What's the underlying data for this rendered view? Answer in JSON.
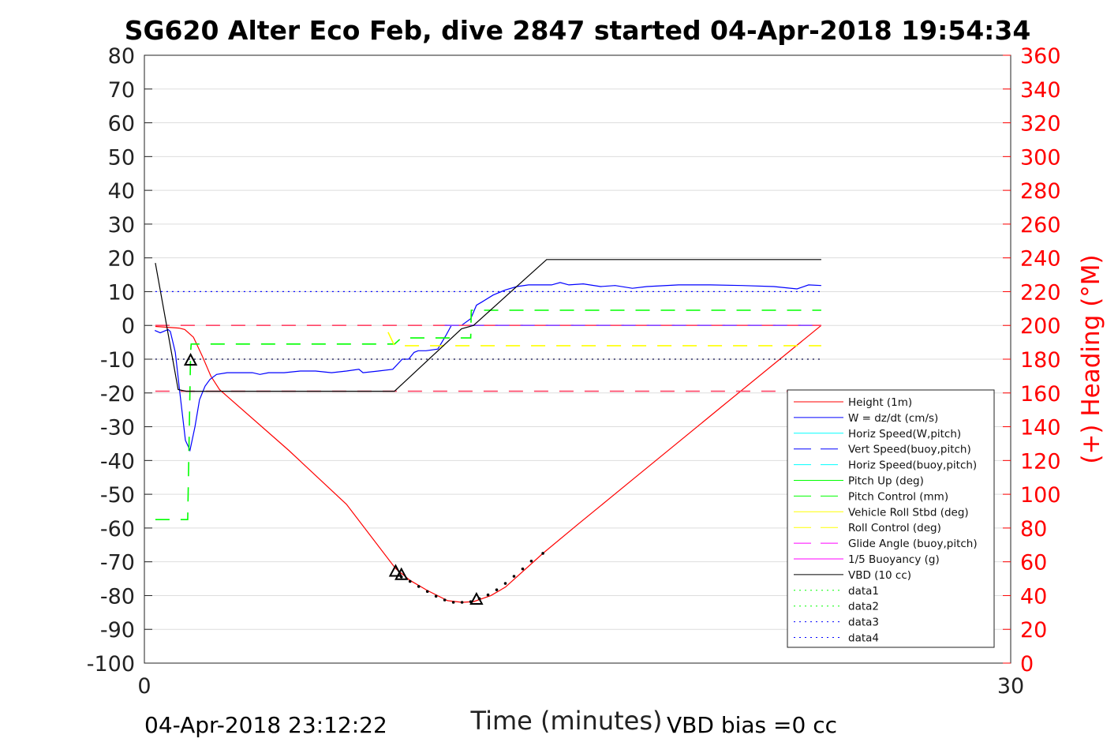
{
  "chart_data": {
    "type": "line",
    "title": "SG620 Alter Eco Feb, dive 2847 started 04-Apr-2018 19:54:34",
    "xlabel": "Time (minutes)",
    "ylabel_right": "(+) Heading (°M)",
    "footer_left": "04-Apr-2018 23:12:22",
    "footer_right": "VBD bias =0 cc",
    "xlim": [
      0,
      30
    ],
    "ylim": [
      -100,
      80
    ],
    "ylim_right": [
      0,
      360
    ],
    "xticks": [
      "0",
      "30"
    ],
    "xtick_values": [
      0,
      30
    ],
    "yticks": [
      "80",
      "70",
      "60",
      "50",
      "40",
      "30",
      "20",
      "10",
      "0",
      "-10",
      "-20",
      "-30",
      "-40",
      "-50",
      "-60",
      "-70",
      "-80",
      "-90",
      "-100"
    ],
    "ytick_values": [
      80,
      70,
      60,
      50,
      40,
      30,
      20,
      10,
      0,
      -10,
      -20,
      -30,
      -40,
      -50,
      -60,
      -70,
      -80,
      -90,
      -100
    ],
    "yticks_right": [
      "360",
      "340",
      "320",
      "300",
      "280",
      "260",
      "240",
      "220",
      "200",
      "180",
      "160",
      "140",
      "120",
      "100",
      "80",
      "60",
      "40",
      "20",
      "0"
    ],
    "ytick_right_values": [
      360,
      340,
      320,
      300,
      280,
      260,
      240,
      220,
      200,
      180,
      160,
      140,
      120,
      100,
      80,
      60,
      40,
      20,
      0
    ],
    "grid": true,
    "legend_position": "lower-right",
    "colors": {
      "right_axis": "#ff0000"
    },
    "legend": [
      {
        "label": "Height (1m)",
        "color": "#ff0000",
        "style": "solid"
      },
      {
        "label": "W = dz/dt (cm/s)",
        "color": "#0000ff",
        "style": "solid"
      },
      {
        "label": "Horiz Speed(W,pitch)",
        "color": "#00ffff",
        "style": "solid"
      },
      {
        "label": "Vert Speed(buoy,pitch)",
        "color": "#0000ff",
        "style": "dashed"
      },
      {
        "label": "Horiz Speed(buoy,pitch)",
        "color": "#00ffff",
        "style": "dashed"
      },
      {
        "label": "Pitch Up (deg)",
        "color": "#00ff00",
        "style": "solid"
      },
      {
        "label": "Pitch Control (mm)",
        "color": "#00ff00",
        "style": "dashed"
      },
      {
        "label": "Vehicle Roll Stbd (deg)",
        "color": "#ffff00",
        "style": "solid"
      },
      {
        "label": "Roll Control (deg)",
        "color": "#ffff00",
        "style": "dashed"
      },
      {
        "label": "Glide Angle (buoy,pitch)",
        "color": "#ff00ff",
        "style": "dashed"
      },
      {
        "label": "1/5 Buoyancy (g)",
        "color": "#ff00ff",
        "style": "solid"
      },
      {
        "label": "VBD (10 cc)",
        "color": "#000000",
        "style": "solid"
      },
      {
        "label": "data1",
        "color": "#00ff00",
        "style": "dotted"
      },
      {
        "label": "data2",
        "color": "#00ff00",
        "style": "dotted"
      },
      {
        "label": "data3",
        "color": "#0000ff",
        "style": "dotted"
      },
      {
        "label": "data4",
        "color": "#0000ff",
        "style": "dotted"
      }
    ],
    "series": [
      {
        "name": "Height (1m)",
        "color": "#ff0000",
        "style": "solid",
        "x": [
          0.38,
          1.2,
          1.4,
          1.7,
          2.0,
          2.3,
          2.6,
          3.0,
          5,
          7,
          8.7,
          9.2,
          9.8,
          10.5,
          11.0,
          11.4,
          12.0,
          12.5,
          13.8,
          15,
          17,
          20,
          23.44
        ],
        "y": [
          -0.3,
          -0.8,
          -1.2,
          -3.5,
          -9,
          -15,
          -19,
          -22,
          -37,
          -53,
          -72,
          -75.5,
          -78.5,
          -81.5,
          -82,
          -81.8,
          -80,
          -77.5,
          -67.5,
          -59,
          -45,
          -24,
          0
        ]
      },
      {
        "name": "W = dz/dt (cm/s)",
        "color": "#0000ff",
        "style": "solid",
        "x": [
          0.36,
          0.55,
          0.82,
          0.9,
          1.07,
          1.23,
          1.42,
          1.58,
          1.75,
          1.91,
          2.1,
          2.27,
          2.5,
          2.87,
          3.2,
          3.74,
          4.0,
          4.3,
          4.84,
          5.4,
          5.93,
          6.48,
          7.0,
          7.43,
          7.57,
          8.1,
          8.6,
          8.93,
          9.15,
          9.34,
          9.48,
          9.75,
          10.16,
          10.44,
          10.63,
          10.98,
          11.3,
          11.5,
          11.7,
          12.08,
          12.5,
          12.9,
          13.3,
          14.1,
          14.4,
          14.7,
          15.2,
          15.8,
          16.3,
          16.9,
          17.4,
          18.5,
          19.6,
          20.7,
          21.8,
          22.6,
          23.0,
          23.44
        ],
        "y": [
          -1.5,
          -2.2,
          -1.2,
          -1.8,
          -8,
          -20,
          -34,
          -37,
          -30,
          -22,
          -18,
          -16,
          -14.5,
          -14,
          -14,
          -14,
          -14.5,
          -14,
          -14,
          -13.5,
          -13.5,
          -14,
          -13.5,
          -13,
          -14,
          -13.5,
          -13,
          -10,
          -10,
          -8,
          -7.5,
          -7.5,
          -7,
          -3,
          0,
          0,
          2,
          6,
          7,
          9,
          10.5,
          11.5,
          12,
          12,
          12.7,
          12,
          12.3,
          11.5,
          11.8,
          11,
          11.5,
          12,
          12,
          11.8,
          11.5,
          10.8,
          12,
          11.8
        ]
      },
      {
        "name": "Glide Angle (buoy,pitch)",
        "color": "#ff4466",
        "style": "dashed",
        "x": [
          0.38,
          23.44
        ],
        "y": [
          0,
          0
        ]
      },
      {
        "name": "Vert Speed(buoy,pitch)",
        "color": "#8844ff",
        "style": "dashed",
        "x": [
          10.4,
          23.44
        ],
        "y": [
          0,
          0
        ]
      },
      {
        "name": "Pitch Control (mm)",
        "color": "#00ff00",
        "style": "dashed",
        "x": [
          0.38,
          1.5,
          1.6,
          1.62,
          8.66,
          8.9,
          11.3,
          11.32,
          23.44
        ],
        "y": [
          -57.5,
          -57.5,
          -8,
          -5.5,
          -5.5,
          -3.7,
          -3.7,
          4.5,
          4.5
        ]
      },
      {
        "name": "Roll Control (deg)",
        "color": "#ffff00",
        "style": "dashed",
        "x": [
          8.44,
          8.66,
          9.1,
          23.44
        ],
        "y": [
          -2,
          -6,
          -6,
          -6
        ]
      },
      {
        "name": "Buoyancy reference",
        "color": "#ff4466",
        "style": "dashed",
        "x": [
          0.38,
          23.44
        ],
        "y": [
          -19.5,
          -19.5
        ]
      },
      {
        "name": "VBD (10 cc)",
        "color": "#000000",
        "style": "solid",
        "x": [
          0.38,
          1.17,
          1.45,
          8.66,
          10.98,
          11.4,
          13.93,
          23.44
        ],
        "y": [
          18.5,
          -19,
          -19.5,
          -19.5,
          -1,
          0,
          19.5,
          19.5
        ]
      },
      {
        "name": "data3",
        "color": "#0000ff",
        "style": "dotted",
        "x": [
          0.38,
          23.44
        ],
        "y": [
          10,
          10
        ]
      },
      {
        "name": "data4",
        "color": "#000044",
        "style": "dotted",
        "x": [
          0.38,
          23.44
        ],
        "y": [
          -10,
          -10
        ]
      }
    ],
    "markers": {
      "triangles": {
        "x": [
          1.6,
          8.7,
          8.9,
          11.5
        ],
        "y": [
          -10.5,
          -73,
          -74,
          -81.3
        ]
      },
      "dots": {
        "x": [
          8.9,
          9.2,
          9.5,
          9.8,
          10.1,
          10.4,
          10.7,
          11.0,
          11.3,
          11.6,
          11.9,
          12.2,
          12.5,
          12.8,
          13.1,
          13.4,
          13.8
        ],
        "y": [
          -74.5,
          -75.8,
          -77.3,
          -78.8,
          -80.2,
          -81.3,
          -82,
          -82,
          -81.8,
          -80.9,
          -79.8,
          -78.3,
          -76.4,
          -74.3,
          -72.1,
          -69.8,
          -67.5
        ]
      }
    }
  }
}
